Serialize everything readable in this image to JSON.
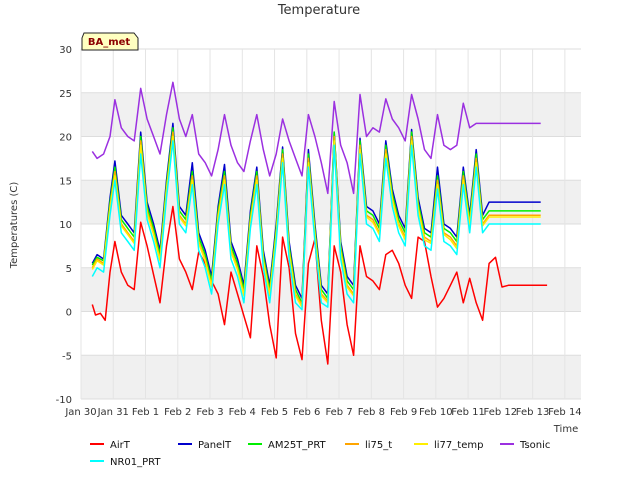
{
  "chart_data": {
    "type": "line",
    "title": "Temperature",
    "xlabel": "Time",
    "ylabel": "Temperatures (C)",
    "annotation": "BA_met",
    "ylim": [
      -10,
      30
    ],
    "yticks": [
      -10,
      -5,
      0,
      5,
      10,
      15,
      20,
      25,
      30
    ],
    "xlim": [
      0,
      15.5
    ],
    "xticks": [
      {
        "x": 0,
        "label": "Jan 30"
      },
      {
        "x": 1,
        "label": "Jan 31"
      },
      {
        "x": 2,
        "label": "Feb 1"
      },
      {
        "x": 3,
        "label": "Feb 2"
      },
      {
        "x": 4,
        "label": "Feb 3"
      },
      {
        "x": 5,
        "label": "Feb 4"
      },
      {
        "x": 6,
        "label": "Feb 5"
      },
      {
        "x": 7,
        "label": "Feb 6"
      },
      {
        "x": 8,
        "label": "Feb 7"
      },
      {
        "x": 9,
        "label": "Feb 8"
      },
      {
        "x": 10,
        "label": "Feb 9"
      },
      {
        "x": 11,
        "label": "Feb 10"
      },
      {
        "x": 12,
        "label": "Feb 11"
      },
      {
        "x": 13,
        "label": "Feb 12"
      },
      {
        "x": 14,
        "label": "Feb 13"
      },
      {
        "x": 15,
        "label": "Feb 14"
      }
    ],
    "grid": true,
    "legend_position": "bottom",
    "series": [
      {
        "name": "AirT",
        "color": "#ff0000",
        "x": [
          0.35,
          0.45,
          0.6,
          0.75,
          0.9,
          1.05,
          1.25,
          1.45,
          1.65,
          1.85,
          2.05,
          2.25,
          2.45,
          2.65,
          2.85,
          3.05,
          3.25,
          3.45,
          3.65,
          3.85,
          4.05,
          4.25,
          4.45,
          4.65,
          4.85,
          5.05,
          5.25,
          5.45,
          5.65,
          5.85,
          6.05,
          6.25,
          6.45,
          6.65,
          6.85,
          7.05,
          7.25,
          7.45,
          7.65,
          7.85,
          8.05,
          8.25,
          8.45,
          8.65,
          8.85,
          9.05,
          9.25,
          9.45,
          9.65,
          9.85,
          10.05,
          10.25,
          10.45,
          10.65,
          10.85,
          11.05,
          11.25,
          11.45,
          11.65,
          11.85,
          12.05,
          12.25,
          12.45,
          12.65,
          12.85,
          13.05,
          13.25,
          13.45,
          13.65,
          13.85,
          14.05,
          14.25,
          14.45
        ],
        "y": [
          0.8,
          -0.4,
          -0.2,
          -1.0,
          4.5,
          8.0,
          4.5,
          3.0,
          2.5,
          10.2,
          7.5,
          4.2,
          1.0,
          7.5,
          12.0,
          6.0,
          4.5,
          2.5,
          6.8,
          5.5,
          3.5,
          2.0,
          -1.5,
          4.5,
          2.0,
          -0.5,
          -3.0,
          7.5,
          4.0,
          -1.5,
          -5.3,
          8.5,
          5.0,
          -2.5,
          -5.5,
          5.5,
          8.3,
          -1.0,
          -6.0,
          7.5,
          4.5,
          -1.5,
          -5.0,
          7.5,
          4.0,
          3.5,
          2.5,
          6.5,
          7.0,
          5.5,
          3.0,
          1.5,
          8.5,
          8.0,
          4.0,
          0.5,
          1.5,
          3.0,
          4.5,
          1.0,
          3.8,
          1.0,
          -1.0,
          5.5,
          6.2,
          2.8,
          3.0,
          3.0,
          3.0,
          3.0,
          3.0,
          3.0,
          3.0
        ]
      },
      {
        "name": "PanelT",
        "color": "#0000cc",
        "x": [
          0.35,
          0.5,
          0.7,
          0.9,
          1.05,
          1.25,
          1.45,
          1.65,
          1.85,
          2.05,
          2.25,
          2.45,
          2.65,
          2.85,
          3.05,
          3.25,
          3.45,
          3.65,
          3.85,
          4.05,
          4.25,
          4.45,
          4.65,
          4.85,
          5.05,
          5.25,
          5.45,
          5.65,
          5.85,
          6.05,
          6.25,
          6.45,
          6.65,
          6.85,
          7.05,
          7.25,
          7.45,
          7.65,
          7.85,
          8.05,
          8.25,
          8.45,
          8.65,
          8.85,
          9.05,
          9.25,
          9.45,
          9.65,
          9.85,
          10.05,
          10.25,
          10.45,
          10.65,
          10.85,
          11.05,
          11.25,
          11.45,
          11.65,
          11.85,
          12.05,
          12.25,
          12.45,
          12.65,
          12.85,
          13.05,
          13.25,
          13.45,
          13.65,
          13.85,
          14.05,
          14.25
        ],
        "y": [
          5.5,
          6.5,
          6.0,
          13.0,
          17.2,
          11.0,
          10.0,
          9.0,
          20.5,
          12.5,
          10.0,
          7.0,
          15.0,
          21.5,
          12.0,
          11.0,
          17.0,
          9.0,
          7.0,
          4.0,
          12.0,
          16.8,
          8.0,
          6.0,
          3.0,
          11.5,
          16.5,
          7.0,
          3.0,
          10.0,
          18.8,
          8.0,
          3.0,
          1.5,
          18.5,
          10.0,
          3.0,
          2.0,
          20.5,
          8.0,
          4.0,
          3.0,
          19.8,
          12.0,
          11.5,
          10.0,
          19.5,
          14.0,
          11.0,
          9.5,
          20.8,
          13.0,
          9.5,
          9.0,
          16.5,
          10.0,
          9.5,
          8.5,
          16.5,
          11.0,
          18.5,
          11.0,
          12.5,
          12.5,
          12.5,
          12.5,
          12.5,
          12.5,
          12.5,
          12.5,
          12.5
        ]
      },
      {
        "name": "AM25T_PRT",
        "color": "#00ee00",
        "x": [
          0.35,
          0.5,
          0.7,
          0.9,
          1.05,
          1.25,
          1.45,
          1.65,
          1.85,
          2.05,
          2.25,
          2.45,
          2.65,
          2.85,
          3.05,
          3.25,
          3.45,
          3.65,
          3.85,
          4.05,
          4.25,
          4.45,
          4.65,
          4.85,
          5.05,
          5.25,
          5.45,
          5.65,
          5.85,
          6.05,
          6.25,
          6.45,
          6.65,
          6.85,
          7.05,
          7.25,
          7.45,
          7.65,
          7.85,
          8.05,
          8.25,
          8.45,
          8.65,
          8.85,
          9.05,
          9.25,
          9.45,
          9.65,
          9.85,
          10.05,
          10.25,
          10.45,
          10.65,
          10.85,
          11.05,
          11.25,
          11.45,
          11.65,
          11.85,
          12.05,
          12.25,
          12.45,
          12.65,
          12.85,
          13.05,
          13.25,
          13.45,
          13.65,
          13.85,
          14.05,
          14.25
        ],
        "y": [
          5.3,
          6.2,
          5.8,
          12.5,
          16.5,
          10.5,
          9.5,
          8.5,
          20.0,
          12.0,
          9.5,
          6.5,
          14.5,
          21.0,
          11.5,
          10.5,
          16.0,
          8.5,
          6.5,
          3.5,
          11.5,
          16.0,
          7.5,
          5.5,
          2.5,
          11.0,
          16.0,
          6.5,
          2.5,
          9.5,
          18.5,
          7.5,
          2.5,
          1.0,
          18.0,
          9.5,
          2.5,
          1.5,
          20.5,
          7.5,
          3.5,
          2.5,
          19.5,
          11.5,
          11.0,
          9.5,
          19.0,
          13.5,
          10.5,
          9.0,
          20.5,
          12.5,
          9.0,
          8.5,
          15.5,
          9.5,
          9.0,
          8.0,
          16.0,
          10.5,
          18.0,
          10.5,
          11.5,
          11.5,
          11.5,
          11.5,
          11.5,
          11.5,
          11.5,
          11.5,
          11.5
        ]
      },
      {
        "name": "li75_t",
        "color": "#ffa500",
        "x": [
          0.35,
          0.5,
          0.7,
          0.9,
          1.05,
          1.25,
          1.45,
          1.65,
          1.85,
          2.05,
          2.25,
          2.45,
          2.65,
          2.85,
          3.05,
          3.25,
          3.45,
          3.65,
          3.85,
          4.05,
          4.25,
          4.45,
          4.65,
          4.85,
          5.05,
          5.25,
          5.45,
          5.65,
          5.85,
          6.05,
          6.25,
          6.45,
          6.65,
          6.85,
          7.05,
          7.25,
          7.45,
          7.65,
          7.85,
          8.05,
          8.25,
          8.45,
          8.65,
          8.85,
          9.05,
          9.25,
          9.45,
          9.65,
          9.85,
          10.05,
          10.25,
          10.45,
          10.65,
          10.85,
          11.05,
          11.25,
          11.45,
          11.65,
          11.85,
          12.05,
          12.25,
          12.45,
          12.65,
          12.85,
          13.05,
          13.25,
          13.45,
          13.65,
          13.85,
          14.05,
          14.25
        ],
        "y": [
          5.0,
          6.0,
          5.5,
          12.0,
          16.0,
          10.0,
          9.0,
          8.0,
          19.5,
          11.5,
          9.0,
          6.0,
          14.0,
          20.5,
          11.0,
          10.0,
          15.5,
          8.0,
          6.0,
          3.0,
          11.0,
          15.5,
          7.0,
          5.0,
          2.0,
          10.5,
          15.5,
          6.0,
          2.0,
          9.0,
          18.0,
          7.0,
          2.0,
          0.8,
          17.5,
          9.0,
          2.0,
          1.2,
          20.0,
          7.0,
          3.0,
          2.0,
          19.0,
          11.0,
          10.5,
          9.0,
          18.5,
          13.0,
          10.0,
          8.5,
          20.0,
          12.0,
          8.5,
          8.0,
          15.0,
          9.0,
          8.5,
          7.5,
          15.5,
          10.0,
          17.5,
          10.0,
          11.0,
          11.0,
          11.0,
          11.0,
          11.0,
          11.0,
          11.0,
          11.0,
          11.0
        ]
      },
      {
        "name": "li77_temp",
        "color": "#ffee00",
        "x": [
          0.35,
          0.5,
          0.7,
          0.9,
          1.05,
          1.25,
          1.45,
          1.65,
          1.85,
          2.05,
          2.25,
          2.45,
          2.65,
          2.85,
          3.05,
          3.25,
          3.45,
          3.65,
          3.85,
          4.05,
          4.25,
          4.45,
          4.65,
          4.85,
          5.05,
          5.25,
          5.45,
          5.65,
          5.85,
          6.05,
          6.25,
          6.45,
          6.65,
          6.85,
          7.05,
          7.25,
          7.45,
          7.65,
          7.85,
          8.05,
          8.25,
          8.45,
          8.65,
          8.85,
          9.05,
          9.25,
          9.45,
          9.65,
          9.85,
          10.05,
          10.25,
          10.45,
          10.65,
          10.85,
          11.05,
          11.25,
          11.45,
          11.65,
          11.85,
          12.05,
          12.25,
          12.45,
          12.65,
          12.85,
          13.05,
          13.25,
          13.45,
          13.65,
          13.85,
          14.05,
          14.25
        ],
        "y": [
          4.8,
          5.8,
          5.3,
          11.8,
          15.5,
          9.8,
          8.8,
          7.8,
          19.0,
          11.2,
          8.8,
          5.8,
          13.8,
          20.0,
          10.8,
          9.8,
          15.0,
          7.8,
          5.8,
          2.8,
          10.8,
          15.0,
          6.8,
          4.8,
          1.8,
          10.2,
          15.0,
          5.8,
          1.8,
          8.8,
          17.5,
          6.8,
          1.8,
          0.5,
          17.0,
          8.8,
          1.8,
          1.0,
          19.5,
          6.8,
          2.8,
          1.8,
          18.5,
          10.8,
          10.2,
          8.8,
          18.0,
          12.8,
          9.8,
          8.2,
          19.5,
          11.8,
          8.2,
          7.8,
          14.5,
          8.8,
          8.2,
          7.2,
          15.0,
          9.8,
          17.0,
          9.8,
          10.8,
          10.8,
          10.8,
          10.8,
          10.8,
          10.8,
          10.8,
          10.8,
          10.8
        ]
      },
      {
        "name": "Tsonic",
        "color": "#9b30e0",
        "x": [
          0.35,
          0.5,
          0.7,
          0.9,
          1.05,
          1.25,
          1.45,
          1.65,
          1.85,
          2.05,
          2.25,
          2.45,
          2.65,
          2.85,
          3.05,
          3.25,
          3.45,
          3.65,
          3.85,
          4.05,
          4.25,
          4.45,
          4.65,
          4.85,
          5.05,
          5.25,
          5.45,
          5.65,
          5.85,
          6.05,
          6.25,
          6.45,
          6.65,
          6.85,
          7.05,
          7.25,
          7.45,
          7.65,
          7.85,
          8.05,
          8.25,
          8.45,
          8.65,
          8.85,
          9.05,
          9.25,
          9.45,
          9.65,
          9.85,
          10.05,
          10.25,
          10.45,
          10.65,
          10.85,
          11.05,
          11.25,
          11.45,
          11.65,
          11.85,
          12.05,
          12.25,
          12.45,
          12.65,
          12.85,
          13.05,
          13.25,
          13.45,
          13.65,
          13.85,
          14.05,
          14.25
        ],
        "y": [
          18.3,
          17.5,
          18.0,
          20.0,
          24.2,
          21.0,
          20.0,
          19.5,
          25.5,
          22.0,
          20.0,
          18.0,
          22.5,
          26.2,
          22.0,
          20.0,
          22.5,
          18.0,
          17.0,
          15.5,
          18.5,
          22.5,
          19.0,
          17.0,
          16.0,
          19.5,
          22.5,
          18.5,
          15.5,
          18.0,
          22.0,
          19.5,
          17.5,
          15.5,
          22.5,
          20.0,
          17.0,
          13.5,
          24.0,
          19.0,
          17.0,
          13.5,
          24.8,
          20.0,
          21.0,
          20.5,
          24.3,
          22.0,
          21.0,
          19.5,
          24.8,
          22.0,
          18.5,
          17.5,
          22.5,
          19.0,
          18.5,
          19.0,
          23.8,
          21.0,
          21.5,
          21.5,
          21.5,
          21.5,
          21.5,
          21.5,
          21.5,
          21.5,
          21.5,
          21.5,
          21.5
        ]
      },
      {
        "name": "NR01_PRT",
        "color": "#00ffff",
        "x": [
          0.35,
          0.5,
          0.7,
          0.9,
          1.05,
          1.25,
          1.45,
          1.65,
          1.85,
          2.05,
          2.25,
          2.45,
          2.65,
          2.85,
          3.05,
          3.25,
          3.45,
          3.65,
          3.85,
          4.05,
          4.25,
          4.45,
          4.65,
          4.85,
          5.05,
          5.25,
          5.45,
          5.65,
          5.85,
          6.05,
          6.25,
          6.45,
          6.65,
          6.85,
          7.05,
          7.25,
          7.45,
          7.65,
          7.85,
          8.05,
          8.25,
          8.45,
          8.65,
          8.85,
          9.05,
          9.25,
          9.45,
          9.65,
          9.85,
          10.05,
          10.25,
          10.45,
          10.65,
          10.85,
          11.05,
          11.25,
          11.45,
          11.65,
          11.85,
          12.05,
          12.25,
          12.45,
          12.65,
          12.85,
          13.05,
          13.25,
          13.45,
          13.65,
          13.85,
          14.05,
          14.25
        ],
        "y": [
          4.0,
          5.0,
          4.5,
          11.0,
          15.0,
          9.0,
          8.0,
          7.0,
          18.0,
          10.5,
          8.0,
          5.0,
          13.0,
          19.5,
          10.0,
          9.0,
          14.5,
          7.0,
          5.0,
          2.0,
          10.0,
          14.5,
          6.0,
          4.0,
          1.0,
          9.5,
          14.5,
          5.0,
          1.0,
          8.0,
          17.0,
          6.0,
          1.0,
          0.2,
          16.5,
          8.0,
          1.0,
          0.5,
          19.0,
          6.0,
          2.0,
          1.0,
          18.0,
          10.0,
          9.5,
          8.0,
          17.5,
          12.0,
          9.0,
          7.5,
          19.0,
          11.0,
          7.5,
          7.0,
          14.0,
          8.0,
          7.5,
          6.5,
          14.5,
          9.0,
          16.5,
          9.0,
          10.0,
          10.0,
          10.0,
          10.0,
          10.0,
          10.0,
          10.0,
          10.0,
          10.0
        ]
      }
    ]
  }
}
